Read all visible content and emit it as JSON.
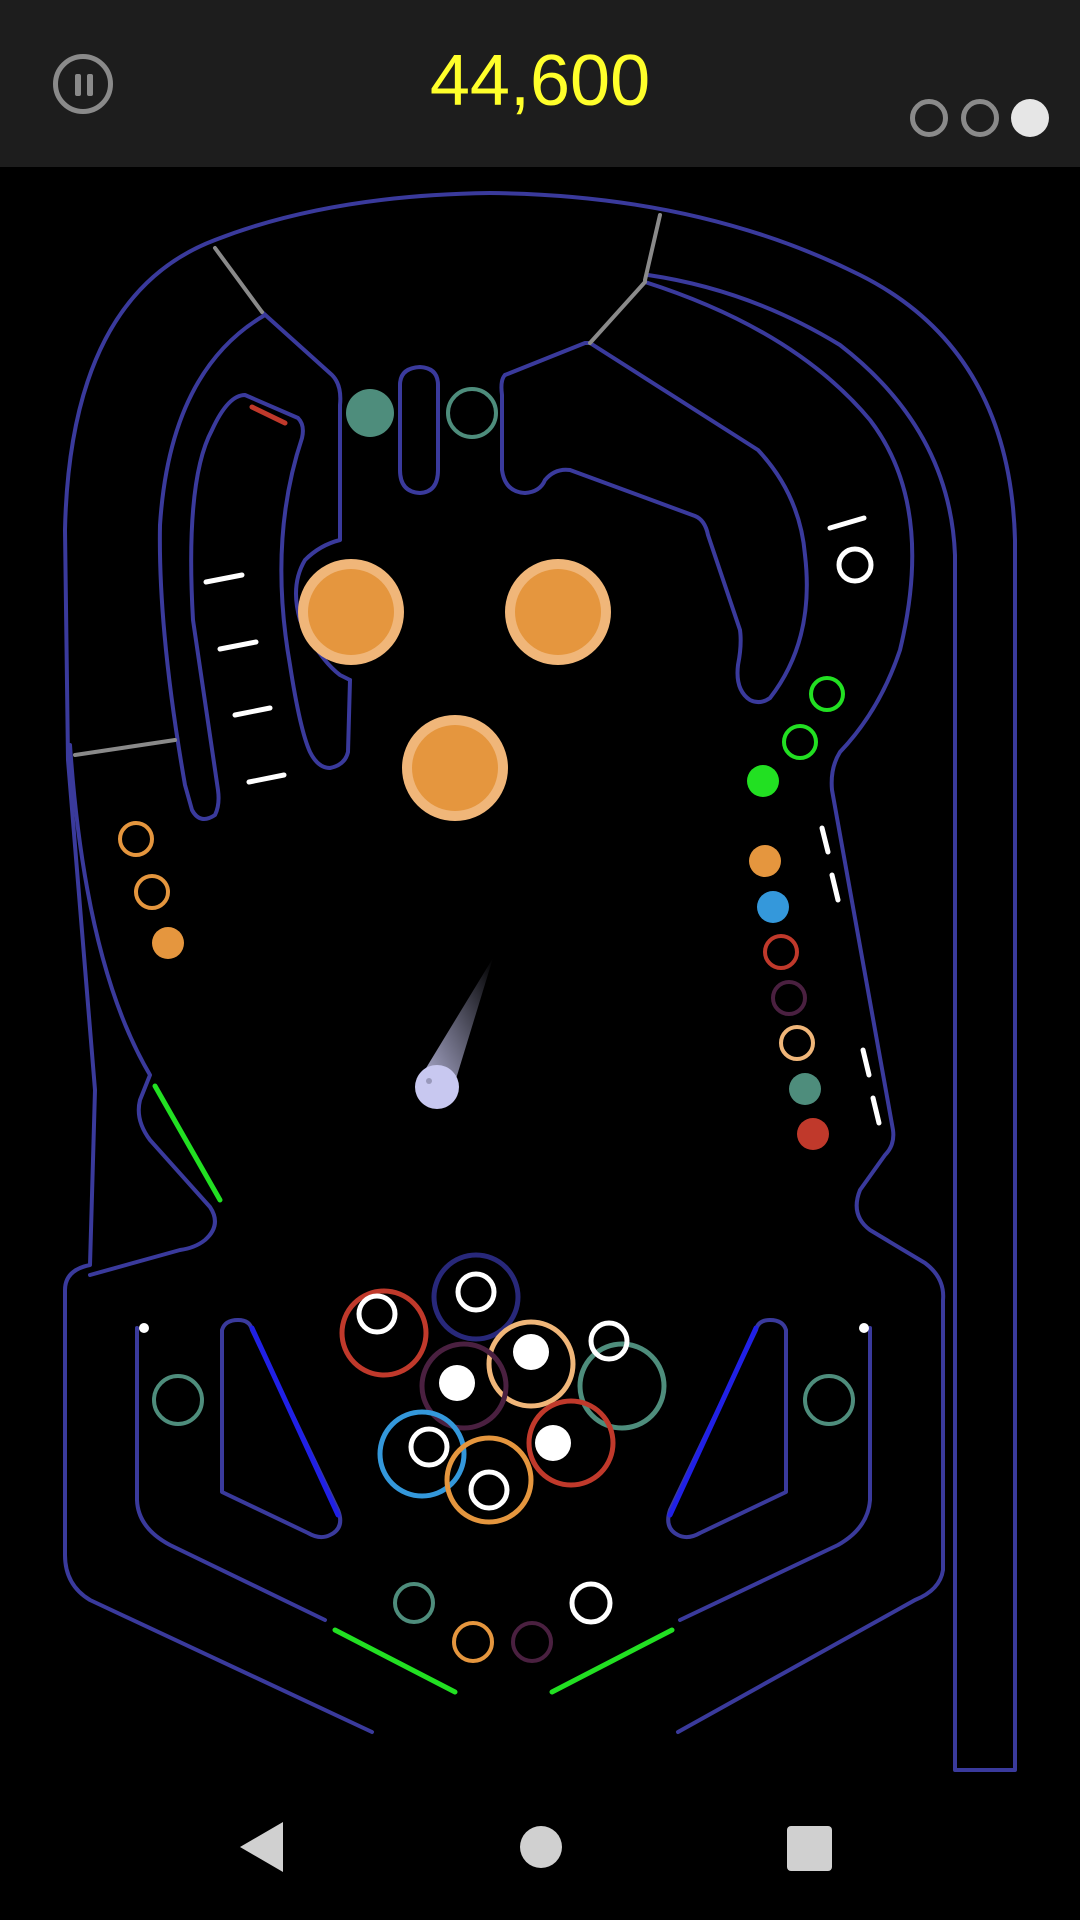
{
  "header": {
    "score": "44,600",
    "balls_total": 3,
    "balls_used_indicator": [
      "empty",
      "empty",
      "full"
    ],
    "pause_icon": "pause-icon"
  },
  "colors": {
    "wall": "#3a3a9c",
    "gate": "#8a8a8a",
    "bumper_outer": "#f0b679",
    "bumper_inner": "#e5963e",
    "score_text": "#ffff2b",
    "flipper": "#22e022",
    "slingshot": "#2020e6",
    "ball": "#c8c8f0"
  },
  "nav": {
    "back_icon": "back-triangle-icon",
    "home_icon": "home-circle-icon",
    "recents_icon": "recents-square-icon"
  }
}
